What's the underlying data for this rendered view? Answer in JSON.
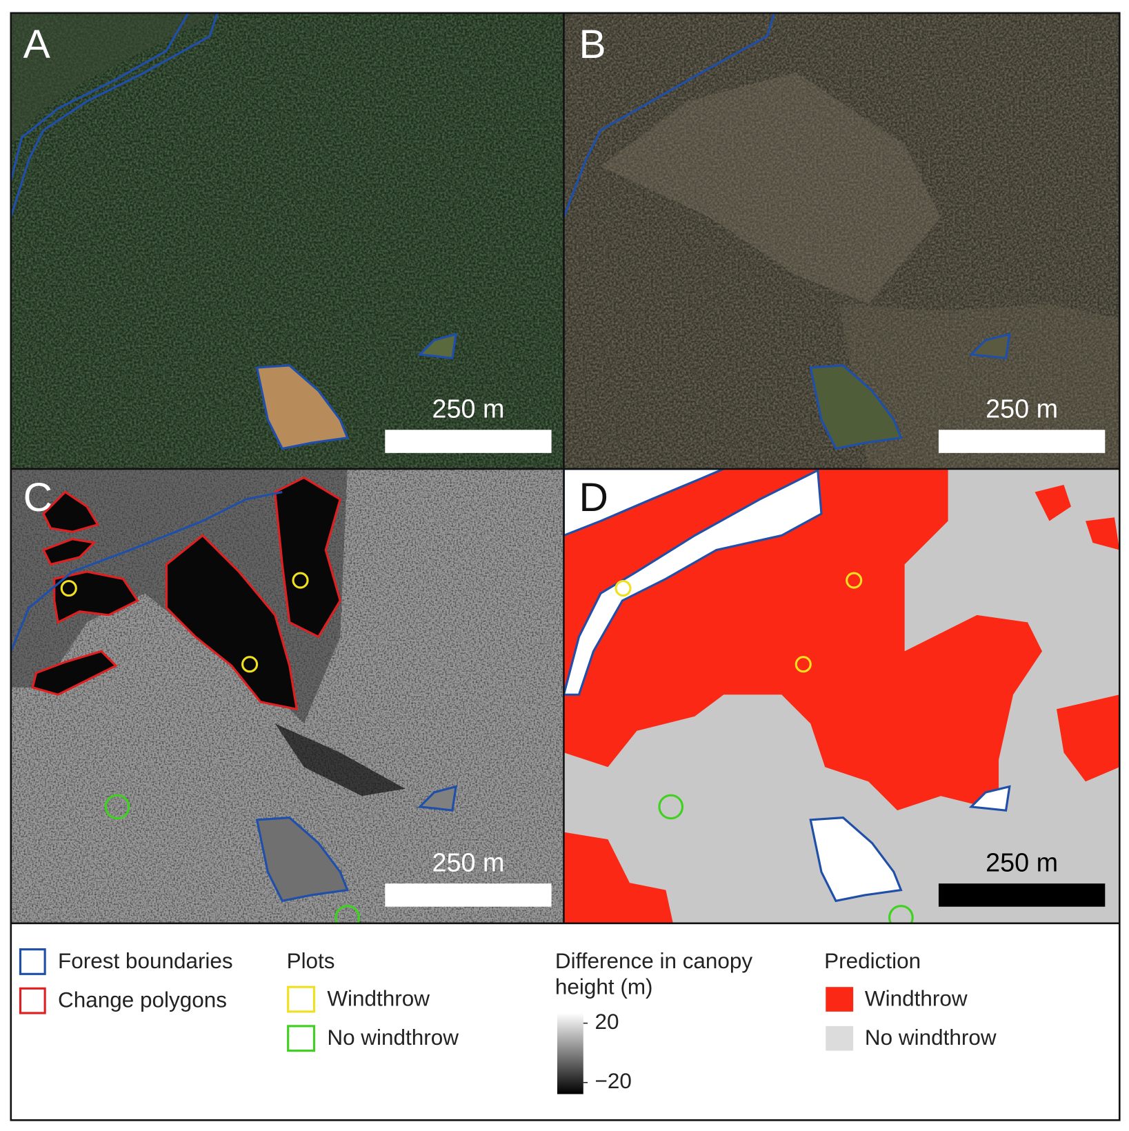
{
  "panels": [
    {
      "label": "A",
      "scale_label": "250 m"
    },
    {
      "label": "B",
      "scale_label": "250 m"
    },
    {
      "label": "C",
      "scale_label": "250 m"
    },
    {
      "label": "D",
      "scale_label": "250 m"
    }
  ],
  "legend": {
    "forest_boundaries": "Forest boundaries",
    "change_polygons": "Change polygons",
    "plots": {
      "title": "Plots",
      "windthrow": "Windthrow",
      "no_windthrow": "No windthrow"
    },
    "canopy": {
      "title_line1": "Difference in canopy",
      "title_line2": "height (m)",
      "range": [
        -20,
        20
      ],
      "ticks": [
        20,
        {
          "value": -20,
          "label": "−20"
        }
      ]
    },
    "prediction": {
      "title": "Prediction",
      "windthrow": "Windthrow",
      "no_windthrow": "No windthrow"
    }
  }
}
